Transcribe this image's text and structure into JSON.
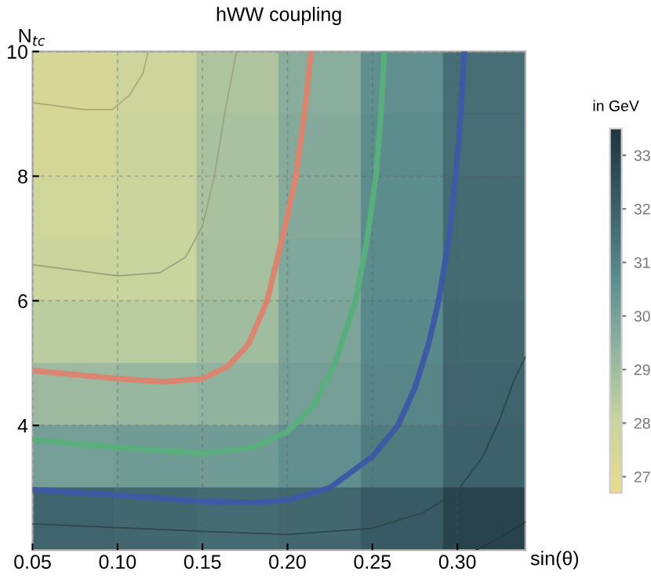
{
  "chart_data": {
    "type": "heatmap",
    "title": "hWW coupling",
    "xlabel": "sin(θ)",
    "ylabel": "N$_{tc}$",
    "clabel": "in GeV",
    "xlim": [
      0.05,
      0.34
    ],
    "ylim": [
      2,
      10
    ],
    "xticks": [
      0.05,
      {
        "value": 0.1,
        "label": "0.10"
      },
      0.15,
      {
        "value": 0.2,
        "label": "0.20"
      },
      0.25,
      {
        "value": 0.3,
        "label": "0.30"
      }
    ],
    "yticks": [
      4,
      6,
      8,
      10
    ],
    "grid": true,
    "clim": [
      26.7,
      33.5
    ],
    "cticks": [
      27,
      28,
      29,
      30,
      31,
      32,
      33
    ],
    "cells": [
      [
        27.5,
        27.9,
        28.7,
        29.6,
        30.6,
        31.6
      ],
      [
        27.6,
        28.0,
        28.8,
        29.7,
        30.7,
        31.6
      ],
      [
        27.8,
        28.0,
        28.8,
        29.7,
        30.7,
        31.7
      ],
      [
        28.0,
        28.05,
        28.9,
        29.8,
        30.7,
        31.7
      ],
      [
        28.4,
        28.4,
        29.0,
        29.9,
        30.8,
        31.8
      ],
      [
        29.1,
        29.2,
        29.4,
        30.1,
        30.9,
        31.9
      ],
      [
        30.1,
        30.2,
        30.2,
        30.6,
        31.2,
        32.0
      ],
      [
        31.9,
        31.8,
        31.7,
        31.8,
        32.2,
        33.0
      ]
    ],
    "series": [
      {
        "type": "line",
        "color": "#d9856f",
        "x": [
          0.05,
          0.1,
          0.127,
          0.15,
          0.165,
          0.177,
          0.188,
          0.197,
          0.205,
          0.21,
          0.214
        ],
        "values": [
          4.88,
          4.75,
          4.7,
          4.75,
          4.95,
          5.3,
          6.0,
          7.0,
          8.0,
          9.0,
          10
        ]
      },
      {
        "type": "line",
        "color": "#5aae7e",
        "x": [
          0.05,
          0.1,
          0.15,
          0.18,
          0.2,
          0.215,
          0.228,
          0.24,
          0.247,
          0.252,
          0.255,
          0.257
        ],
        "values": [
          3.77,
          3.65,
          3.55,
          3.65,
          3.9,
          4.3,
          5.0,
          6.0,
          7.0,
          8.0,
          9.0,
          10
        ]
      },
      {
        "type": "line",
        "color": "#3f5aa5",
        "x": [
          0.05,
          0.1,
          0.15,
          0.18,
          0.2,
          0.225,
          0.25,
          0.265,
          0.275,
          0.283,
          0.289,
          0.295,
          0.299,
          0.302,
          0.304
        ],
        "values": [
          2.97,
          2.88,
          2.78,
          2.76,
          2.8,
          3.0,
          3.5,
          4.0,
          4.6,
          5.3,
          6.0,
          7.0,
          8.0,
          9.0,
          10
        ]
      },
      {
        "type": "line",
        "color": "#a8a878",
        "x": [
          0.05,
          0.08,
          0.097,
          0.107,
          0.115,
          0.118
        ],
        "values": [
          9.18,
          9.07,
          9.07,
          9.3,
          9.65,
          10
        ]
      },
      {
        "type": "line",
        "color": "#9aa27c",
        "x": [
          0.05,
          0.1,
          0.125,
          0.14,
          0.15,
          0.157,
          0.163,
          0.17
        ],
        "values": [
          6.58,
          6.4,
          6.45,
          6.7,
          7.2,
          8.0,
          9.0,
          10
        ]
      },
      {
        "type": "line",
        "color": "#2c4548",
        "x": [
          0.05,
          0.15,
          0.2,
          0.25,
          0.28,
          0.3,
          0.315,
          0.325,
          0.333,
          0.34
        ],
        "values": [
          2.42,
          2.3,
          2.25,
          2.35,
          2.6,
          2.95,
          3.5,
          4.1,
          4.7,
          5.1
        ]
      },
      {
        "type": "line",
        "color": "#22383c",
        "x": [
          0.311,
          0.325,
          0.34
        ],
        "values": [
          2.0,
          2.2,
          2.45
        ]
      }
    ]
  }
}
